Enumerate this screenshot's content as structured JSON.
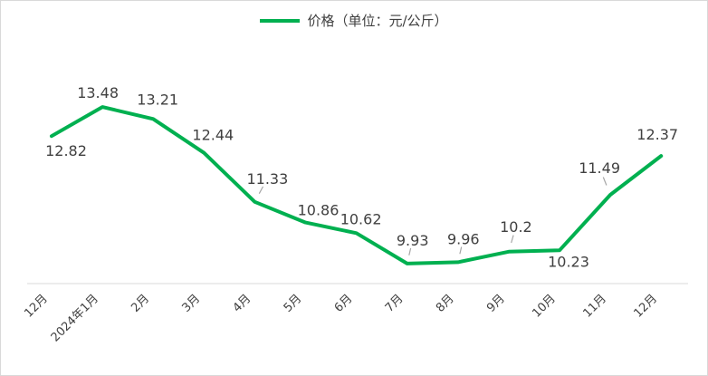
{
  "colors": {
    "series": "#00B050",
    "axis": "#d9d9d9",
    "text": "#404040",
    "leader": "#a6a6a6"
  },
  "legend": {
    "label": "价格（单位：元/公斤）"
  },
  "chart_data": {
    "type": "line",
    "categories": [
      "12月",
      "2024年1月",
      "2月",
      "3月",
      "4月",
      "5月",
      "6月",
      "7月",
      "8月",
      "9月",
      "10月",
      "11月",
      "12月"
    ],
    "series": [
      {
        "name": "价格（单位：元/公斤）",
        "values": [
          12.82,
          13.48,
          13.21,
          12.44,
          11.33,
          10.86,
          10.62,
          9.93,
          9.96,
          10.2,
          10.23,
          11.49,
          12.37
        ],
        "data_labels": [
          "12.82",
          "13.48",
          "13.21",
          "12.44",
          "11.33",
          "10.86",
          "10.62",
          "9.93",
          "9.96",
          "10.2",
          "10.23",
          "11.49",
          "12.37"
        ]
      }
    ],
    "ylim": [
      9.7,
      14.0
    ],
    "grid": false,
    "legend_position": "top"
  }
}
